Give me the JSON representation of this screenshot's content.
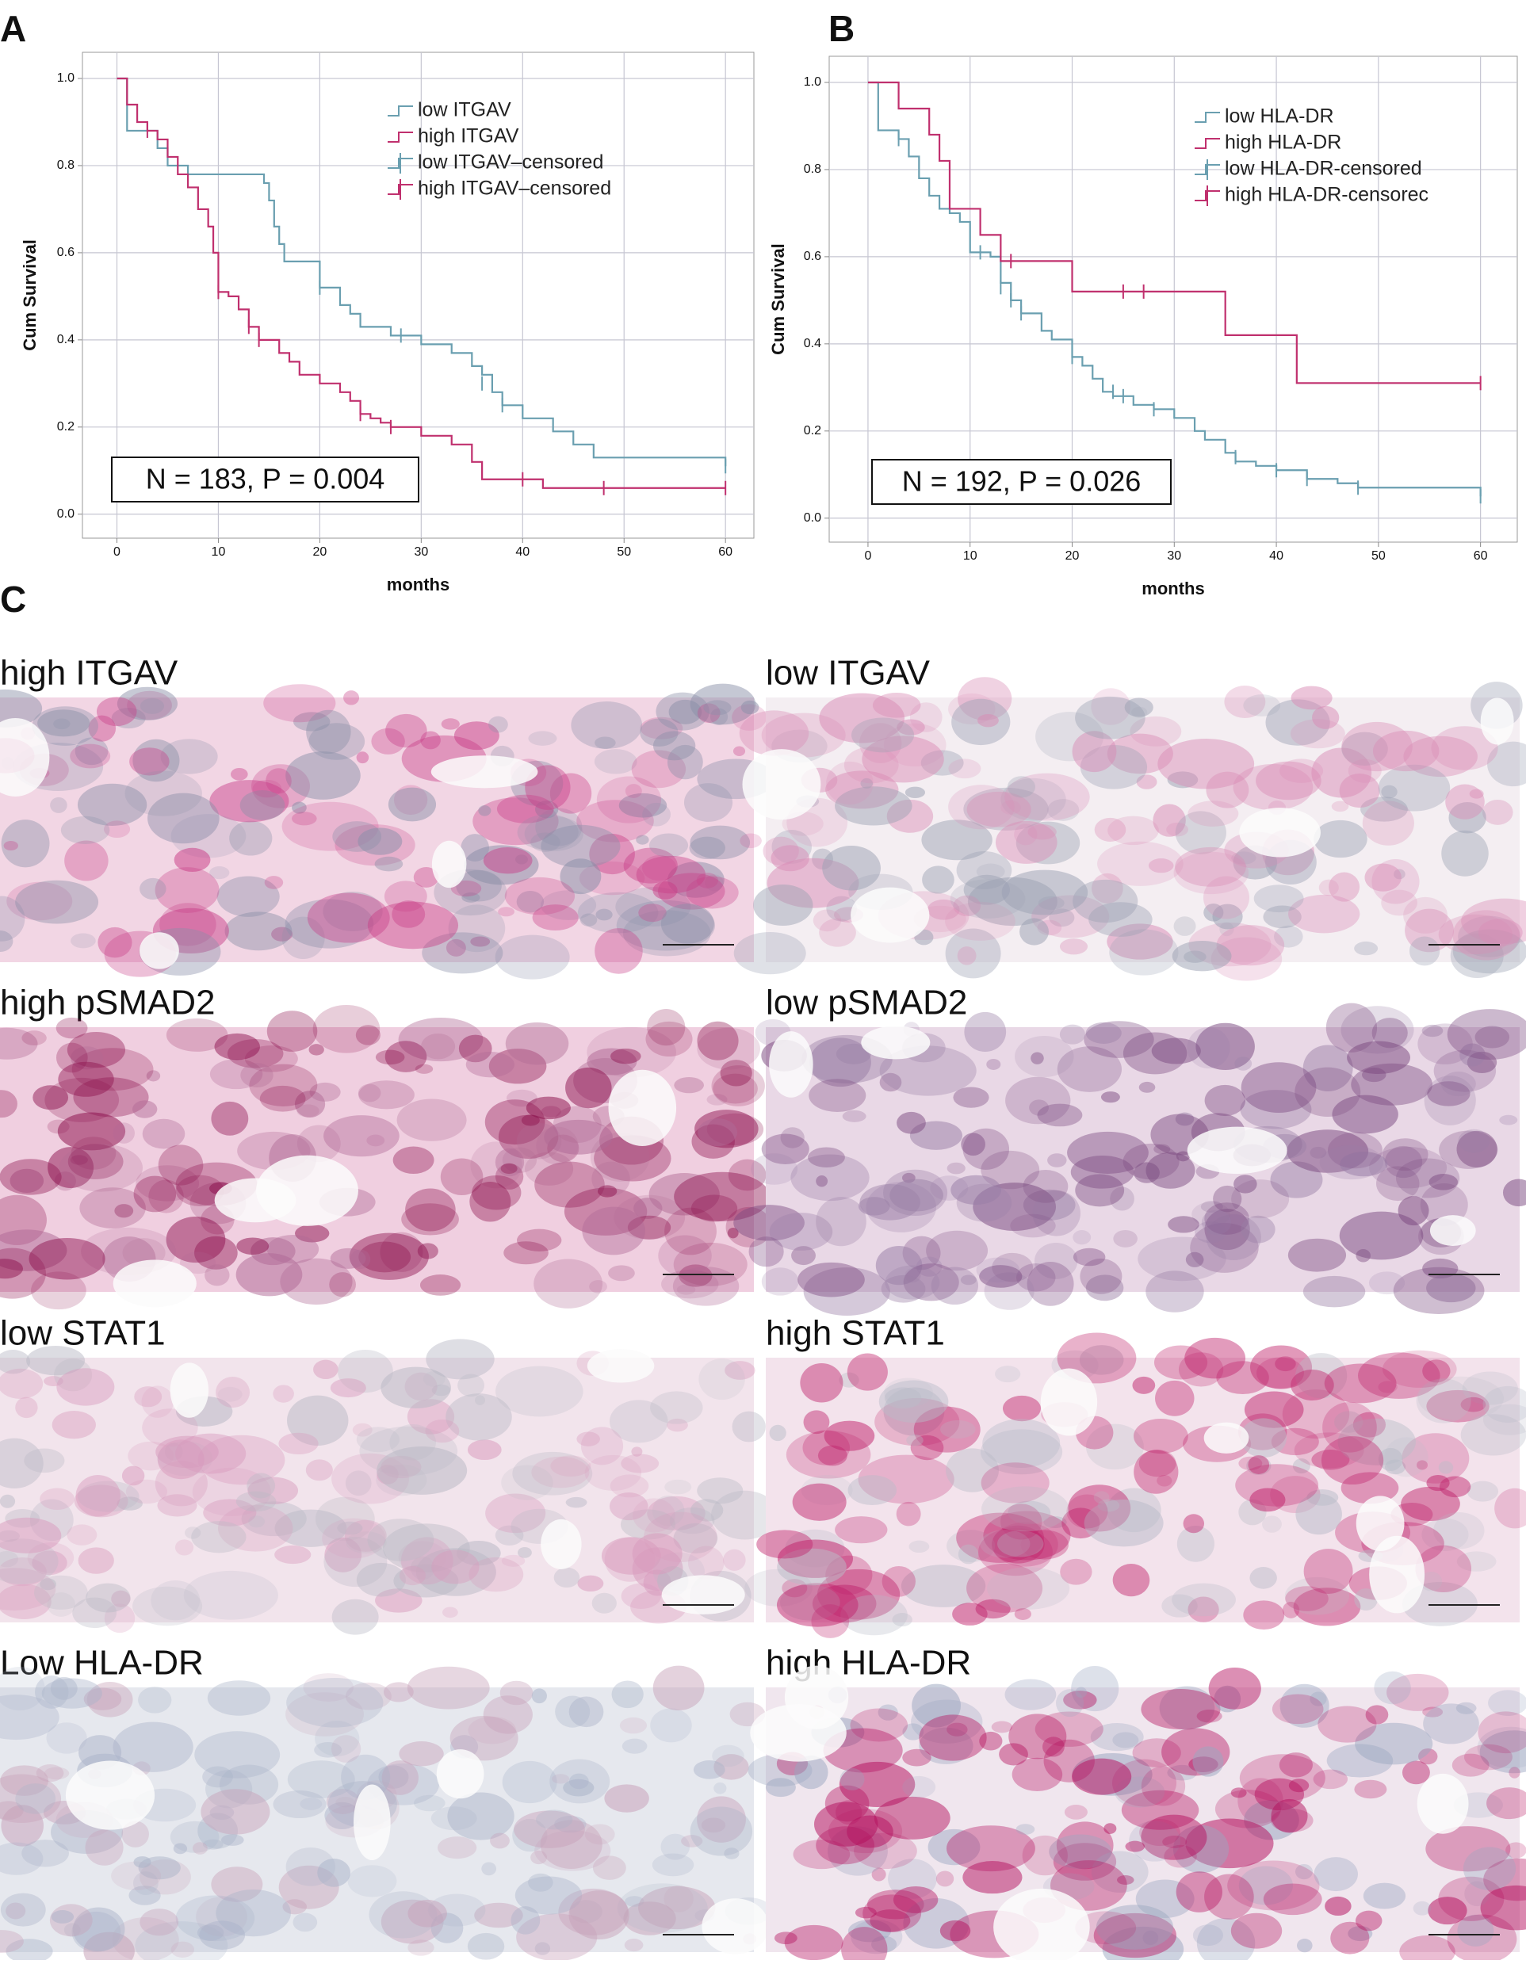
{
  "chart_data": [
    {
      "type": "line",
      "panel": "A",
      "xlabel": "months",
      "ylabel": "Cum Survival",
      "annotation": "N = 183, P = 0.004",
      "xlim": [
        -3.4,
        62.8
      ],
      "ylim": [
        -0.055,
        1.06
      ],
      "xticks": [
        0,
        10,
        20,
        30,
        40,
        50,
        60
      ],
      "yticks": [
        {
          "value": 0,
          "label": "0.0"
        },
        0.2,
        0.4,
        0.6,
        0.8,
        {
          "value": 1,
          "label": "1.0"
        }
      ],
      "grid": true,
      "legend": "upper right",
      "series": [
        {
          "name": "low ITGAV",
          "style": "step",
          "color": "#6a9fb0",
          "x": [
            0,
            1,
            4,
            5,
            7,
            14.5,
            15,
            15.5,
            16,
            16.5,
            20,
            22,
            23,
            24,
            27,
            30,
            33,
            35,
            36,
            37,
            38,
            40,
            43,
            45,
            47,
            60
          ],
          "values": [
            1.0,
            0.88,
            0.84,
            0.8,
            0.78,
            0.76,
            0.72,
            0.66,
            0.62,
            0.58,
            0.52,
            0.48,
            0.46,
            0.43,
            0.41,
            0.39,
            0.37,
            0.34,
            0.32,
            0.28,
            0.25,
            0.22,
            0.19,
            0.16,
            0.13,
            0.11
          ]
        },
        {
          "name": "high ITGAV",
          "style": "step",
          "color": "#c0306e",
          "x": [
            0,
            1,
            2,
            3,
            4,
            5,
            6,
            7,
            8,
            9,
            9.5,
            10,
            11,
            12,
            13,
            14,
            16,
            17,
            18,
            20,
            22,
            23,
            24,
            25,
            26,
            27,
            30,
            33,
            35,
            36,
            42,
            60
          ],
          "values": [
            1.0,
            0.94,
            0.9,
            0.88,
            0.86,
            0.82,
            0.78,
            0.75,
            0.7,
            0.66,
            0.6,
            0.51,
            0.5,
            0.47,
            0.43,
            0.4,
            0.37,
            0.35,
            0.32,
            0.3,
            0.28,
            0.26,
            0.23,
            0.22,
            0.21,
            0.2,
            0.18,
            0.16,
            0.12,
            0.08,
            0.06,
            0.06
          ]
        },
        {
          "name": "low ITGAV–censored",
          "style": "censor",
          "color": "#6a9fb0",
          "x": [
            20,
            28,
            36,
            38,
            60
          ],
          "values": [
            0.52,
            0.41,
            0.3,
            0.25,
            0.11
          ]
        },
        {
          "name": "high ITGAV–censored",
          "style": "censor",
          "color": "#c0306e",
          "x": [
            3,
            10,
            13,
            14,
            24,
            27,
            40,
            48,
            60
          ],
          "values": [
            0.88,
            0.51,
            0.43,
            0.4,
            0.23,
            0.2,
            0.08,
            0.06,
            0.06
          ]
        }
      ]
    },
    {
      "type": "line",
      "panel": "B",
      "xlabel": "months",
      "ylabel": "Cum Survival",
      "annotation": "N = 192, P = 0.026",
      "xlim": [
        -3.8,
        63.6
      ],
      "ylim": [
        -0.055,
        1.06
      ],
      "xticks": [
        0,
        10,
        20,
        30,
        40,
        50,
        60
      ],
      "yticks": [
        {
          "value": 0,
          "label": "0.0"
        },
        0.2,
        0.4,
        0.6,
        0.8,
        {
          "value": 1,
          "label": "1.0"
        }
      ],
      "grid": true,
      "legend": "upper right",
      "series": [
        {
          "name": "low HLA-DR",
          "style": "step",
          "color": "#6a9fb0",
          "x": [
            0,
            1,
            3,
            4,
            5,
            6,
            7,
            8,
            9,
            10,
            12,
            13,
            14,
            15,
            17,
            18,
            20,
            21,
            22,
            23,
            24,
            26,
            28,
            30,
            32,
            33,
            35,
            36,
            38,
            40,
            43,
            46,
            48,
            60
          ],
          "values": [
            1.0,
            0.89,
            0.87,
            0.83,
            0.78,
            0.74,
            0.71,
            0.7,
            0.68,
            0.61,
            0.6,
            0.54,
            0.5,
            0.47,
            0.43,
            0.41,
            0.37,
            0.35,
            0.32,
            0.29,
            0.28,
            0.26,
            0.25,
            0.23,
            0.2,
            0.18,
            0.15,
            0.13,
            0.12,
            0.11,
            0.09,
            0.08,
            0.07,
            0.05
          ]
        },
        {
          "name": "high HLA-DR",
          "style": "step",
          "color": "#c0306e",
          "x": [
            0,
            3,
            6,
            7,
            8,
            11,
            13,
            20,
            35,
            42,
            60
          ],
          "values": [
            1.0,
            0.94,
            0.88,
            0.82,
            0.71,
            0.65,
            0.59,
            0.52,
            0.42,
            0.31,
            0.31
          ]
        },
        {
          "name": "low HLA-DR-censored",
          "style": "censor",
          "color": "#6a9fb0",
          "x": [
            3,
            11,
            13,
            14,
            15,
            20,
            24,
            25,
            28,
            36,
            40,
            43,
            48,
            60
          ],
          "values": [
            0.87,
            0.61,
            0.53,
            0.5,
            0.47,
            0.37,
            0.29,
            0.28,
            0.25,
            0.14,
            0.11,
            0.09,
            0.07,
            0.05
          ]
        },
        {
          "name": "high HLA-DR-censorec",
          "style": "censor",
          "color": "#c0306e",
          "x": [
            14,
            25,
            27,
            60
          ],
          "values": [
            0.59,
            0.52,
            0.52,
            0.31
          ]
        }
      ]
    }
  ],
  "panel_c": {
    "label": "C",
    "images": [
      {
        "caption": "high ITGAV"
      },
      {
        "caption": "low ITGAV"
      },
      {
        "caption": "high pSMAD2"
      },
      {
        "caption": "low pSMAD2"
      },
      {
        "caption": "low STAT1"
      },
      {
        "caption": "high STAT1"
      },
      {
        "caption": "Low HLA-DR"
      },
      {
        "caption": "high HLA-DR"
      }
    ]
  }
}
